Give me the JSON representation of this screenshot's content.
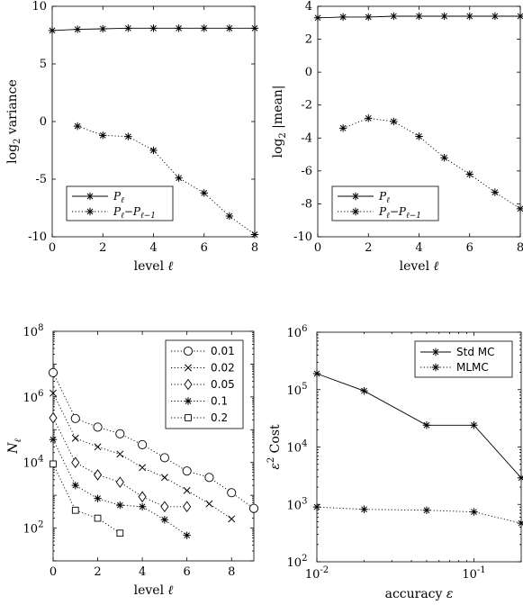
{
  "chart_data": [
    {
      "type": "line",
      "xlabel": "level ℓ",
      "ylabel": "log₂ variance",
      "xlim": [
        0,
        8
      ],
      "ylim": [
        -10,
        10
      ],
      "xticks": [
        "0",
        "2",
        "4",
        "6",
        "8"
      ],
      "yticks": [
        "-10",
        "-5",
        "0",
        "5",
        "10"
      ],
      "legend_position": "bottom-left",
      "series": [
        {
          "name": "P_ℓ",
          "style": "solid",
          "marker": "asterisk",
          "x": [
            0,
            1,
            2,
            3,
            4,
            5,
            6,
            7,
            8
          ],
          "y": [
            7.9,
            8.0,
            8.05,
            8.1,
            8.1,
            8.1,
            8.1,
            8.1,
            8.1
          ]
        },
        {
          "name": "P_ℓ − P_ℓ−1",
          "style": "dotted",
          "marker": "asterisk",
          "x": [
            1,
            2,
            3,
            4,
            5,
            6,
            7,
            8
          ],
          "y": [
            -0.4,
            -1.2,
            -1.3,
            -2.5,
            -4.9,
            -6.2,
            -8.2,
            -9.8
          ]
        }
      ]
    },
    {
      "type": "line",
      "xlabel": "level ℓ",
      "ylabel": "log₂ |mean|",
      "xlim": [
        0,
        8
      ],
      "ylim": [
        -10,
        4
      ],
      "xticks": [
        "0",
        "2",
        "4",
        "6",
        "8"
      ],
      "yticks": [
        "-10",
        "-8",
        "-6",
        "-4",
        "-2",
        "0",
        "2",
        "4"
      ],
      "legend_position": "bottom-left",
      "series": [
        {
          "name": "P_ℓ",
          "style": "solid",
          "marker": "asterisk",
          "x": [
            0,
            1,
            2,
            3,
            4,
            5,
            6,
            7,
            8
          ],
          "y": [
            3.3,
            3.35,
            3.35,
            3.4,
            3.4,
            3.4,
            3.4,
            3.4,
            3.4
          ]
        },
        {
          "name": "P_ℓ − P_ℓ−1",
          "style": "dotted",
          "marker": "asterisk",
          "x": [
            1,
            2,
            3,
            4,
            5,
            6,
            7,
            8
          ],
          "y": [
            -3.4,
            -2.8,
            -3.0,
            -3.9,
            -5.2,
            -6.2,
            -7.3,
            -8.3
          ]
        }
      ]
    },
    {
      "type": "line",
      "xlabel": "level ℓ",
      "ylabel": "N_ℓ",
      "yscale": "log",
      "xlim": [
        0,
        9
      ],
      "ylim": [
        10,
        100000000
      ],
      "xticks": [
        "0",
        "2",
        "4",
        "6",
        "8"
      ],
      "ytick_exponents": [
        2,
        4,
        6,
        8
      ],
      "legend_position": "top-right",
      "series": [
        {
          "name": "0.01",
          "style": "dotted",
          "marker": "circle",
          "x": [
            0,
            1,
            2,
            3,
            4,
            5,
            6,
            7,
            8,
            9
          ],
          "y": [
            5500000,
            220000,
            120000,
            75000,
            35000,
            14000,
            5500,
            3500,
            1200,
            400
          ]
        },
        {
          "name": "0.02",
          "style": "dotted",
          "marker": "x",
          "x": [
            0,
            1,
            2,
            3,
            4,
            5,
            6,
            7,
            8
          ],
          "y": [
            1300000,
            55000,
            30000,
            18000,
            7000,
            3500,
            1400,
            550,
            190
          ]
        },
        {
          "name": "0.05",
          "style": "dotted",
          "marker": "diamond",
          "x": [
            0,
            1,
            2,
            3,
            4,
            5,
            6
          ],
          "y": [
            230000,
            10000,
            4200,
            2500,
            900,
            450,
            450
          ]
        },
        {
          "name": "0.1",
          "style": "dotted",
          "marker": "asterisk",
          "x": [
            0,
            1,
            2,
            3,
            4,
            5,
            6
          ],
          "y": [
            50000,
            2000,
            800,
            500,
            450,
            180,
            60
          ]
        },
        {
          "name": "0.2",
          "style": "dotted",
          "marker": "square",
          "x": [
            0,
            1,
            2,
            3
          ],
          "y": [
            9000,
            350,
            200,
            70
          ]
        }
      ]
    },
    {
      "type": "line",
      "xlabel": "accuracy ε",
      "ylabel": "ε² Cost",
      "xscale": "log",
      "yscale": "log",
      "xlim": [
        0.01,
        0.2
      ],
      "ylim": [
        100,
        1000000
      ],
      "xtick_exponents": [
        -2,
        -1
      ],
      "ytick_exponents": [
        2,
        3,
        4,
        5,
        6
      ],
      "legend_position": "top-right",
      "series": [
        {
          "name": "Std MC",
          "style": "solid",
          "marker": "asterisk",
          "x": [
            0.01,
            0.02,
            0.05,
            0.1,
            0.2
          ],
          "y": [
            190000,
            95000,
            24000,
            24000,
            2900
          ]
        },
        {
          "name": "MLMC",
          "style": "dotted",
          "marker": "asterisk",
          "x": [
            0.01,
            0.02,
            0.05,
            0.1,
            0.2
          ],
          "y": [
            900,
            820,
            790,
            740,
            470
          ]
        }
      ]
    }
  ]
}
